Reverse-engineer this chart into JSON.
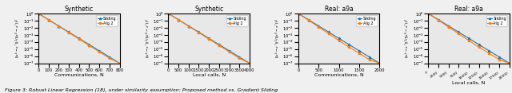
{
  "panels": [
    {
      "title": "Synthetic",
      "xlabel": "Communications, N",
      "xmax": 800,
      "xticks": [
        0,
        100,
        200,
        300,
        400,
        500,
        600,
        700,
        800
      ],
      "ylim_log": [
        -7,
        0
      ],
      "sliding_x": [
        0,
        100,
        200,
        300,
        400,
        500,
        600,
        700,
        800
      ],
      "sliding_y_exp": [
        0,
        -0.875,
        -1.75,
        -2.625,
        -3.5,
        -4.375,
        -5.25,
        -6.125,
        -7.0
      ],
      "alg2_x": [
        0,
        100,
        200,
        300,
        400,
        500,
        600,
        700,
        800
      ],
      "alg2_y_exp": [
        0,
        -0.9,
        -1.8,
        -2.7,
        -3.6,
        -4.5,
        -5.4,
        -6.3,
        -7.0
      ]
    },
    {
      "title": "Synthetic",
      "xlabel": "Local calls, N",
      "xmax": 4000,
      "xticks": [
        0,
        500,
        1000,
        1500,
        2000,
        2500,
        3000,
        3500,
        4000
      ],
      "ylim_log": [
        -7,
        0
      ],
      "sliding_x": [
        0,
        500,
        1000,
        1500,
        2000,
        2500,
        3000,
        3500,
        4000
      ],
      "sliding_y_exp": [
        0,
        -0.875,
        -1.75,
        -2.625,
        -3.5,
        -4.375,
        -5.25,
        -6.125,
        -7.0
      ],
      "alg2_x": [
        0,
        500,
        1000,
        1500,
        2000,
        2500,
        3000,
        3500,
        4000
      ],
      "alg2_y_exp": [
        0,
        -0.9,
        -1.8,
        -2.7,
        -3.6,
        -4.5,
        -5.4,
        -6.3,
        -7.0
      ]
    },
    {
      "title": "Real: a9a",
      "xlabel": "Communications, N",
      "xmax": 2000,
      "xticks": [
        0,
        500,
        1000,
        1500,
        2000
      ],
      "ylim_log": [
        -7,
        0
      ],
      "sliding_x": [
        0,
        250,
        500,
        750,
        1000,
        1250,
        1500,
        1750,
        2000
      ],
      "sliding_y_exp": [
        0,
        -0.875,
        -1.75,
        -2.625,
        -3.5,
        -4.375,
        -5.25,
        -6.125,
        -7.0
      ],
      "alg2_x": [
        0,
        250,
        500,
        750,
        1000,
        1250,
        1500,
        1750,
        2000
      ],
      "alg2_y_exp": [
        0,
        -0.95,
        -1.9,
        -2.85,
        -3.8,
        -4.75,
        -5.6,
        -6.5,
        -7.0
      ]
    },
    {
      "title": "Real: a9a",
      "xlabel": "Local calls, N",
      "xmax": 20000,
      "xticks": [
        0,
        2500,
        5000,
        7500,
        10000,
        12500,
        15000,
        17500,
        20000
      ],
      "ylim_log": [
        -7,
        0
      ],
      "sliding_x": [
        0,
        2500,
        5000,
        7500,
        10000,
        12500,
        15000,
        17500,
        20000
      ],
      "sliding_y_exp": [
        0,
        -0.875,
        -1.75,
        -2.625,
        -3.5,
        -4.375,
        -5.25,
        -6.125,
        -7.0
      ],
      "alg2_x": [
        0,
        2500,
        5000,
        7500,
        10000,
        12500,
        15000,
        17500,
        20000
      ],
      "alg2_y_exp": [
        0,
        -0.95,
        -1.9,
        -2.85,
        -3.8,
        -4.75,
        -5.6,
        -6.5,
        -7.0
      ]
    }
  ],
  "sliding_color": "#1f77b4",
  "alg2_color": "#ff7f0e",
  "sliding_marker": "^",
  "alg2_marker": "s",
  "legend_labels": [
    "Sliding",
    "Alg 2"
  ],
  "ylabel": "$||x^k - x^*||^2 / ||x^0 - x^*||^2$",
  "bg_color": "#e8e8e8",
  "fig_bg_color": "#f0f0f0",
  "caption": "Figure 3: Robust Linear Regression (18), under similarity assumption: Proposed method vs. Gradient Sliding"
}
